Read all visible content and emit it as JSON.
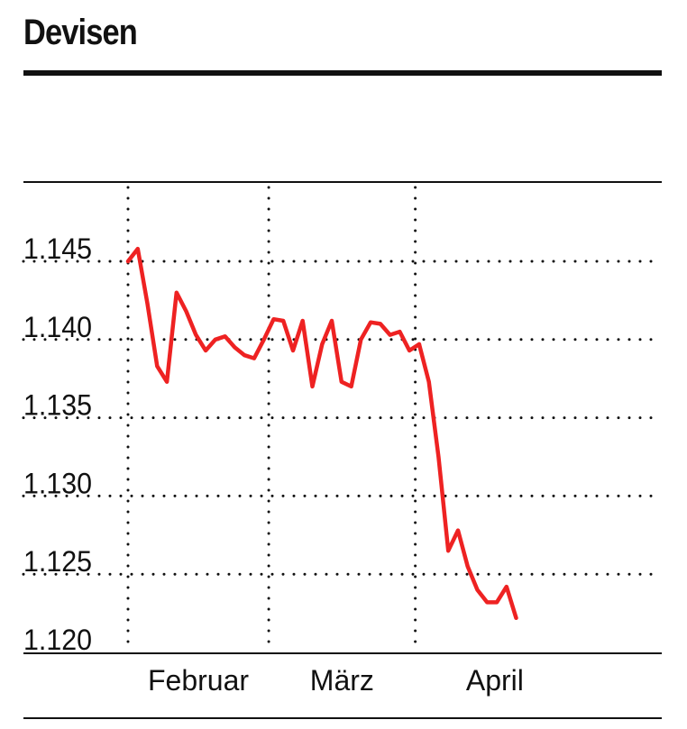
{
  "chart_data": {
    "type": "line",
    "title": "Devisen",
    "xlabel": "",
    "ylabel": "",
    "y_ticks": [
      "1.145",
      "1.140",
      "1.135",
      "1.130",
      "1.125",
      "1.120"
    ],
    "y_tick_values": [
      1.145,
      1.14,
      1.135,
      1.13,
      1.125,
      1.12
    ],
    "ylim": [
      1.12,
      1.145
    ],
    "x_tick_labels": [
      "Februar",
      "März",
      "April"
    ],
    "x_index_range": [
      0,
      55
    ],
    "x_gridlines_at_index": [
      0,
      14.5,
      29.6
    ],
    "x_label_at_index": [
      7.25,
      22.05,
      37.8
    ],
    "grid": "dotted",
    "colors": {
      "line": "#ee2222",
      "text": "#111111",
      "rule": "#111111"
    },
    "series": [
      {
        "name": "",
        "x": [
          0,
          1,
          2,
          3,
          4,
          5,
          6,
          7,
          8,
          9,
          10,
          11,
          12,
          13,
          14,
          15,
          16,
          17,
          18,
          19,
          20,
          21,
          22,
          23,
          24,
          25,
          26,
          27,
          28,
          29,
          30
        ],
        "y": [
          1.145,
          1.1458,
          1.1423,
          1.1383,
          1.1373,
          1.143,
          1.1418,
          1.1403,
          1.1393,
          1.14,
          1.1402,
          1.1395,
          1.139,
          1.1388,
          1.14,
          1.1413,
          1.1412,
          1.1393,
          1.1412,
          1.137,
          1.1397,
          1.1412,
          1.1373,
          1.137,
          1.14,
          1.1411,
          1.141,
          1.1403,
          1.1405,
          1.1393,
          1.1397
        ]
      },
      {
        "name": "",
        "x": [
          30,
          31,
          32,
          33,
          34,
          35,
          36,
          37,
          38,
          39,
          40
        ],
        "y": [
          1.1397,
          1.1373,
          1.1325,
          1.1265,
          1.1278,
          1.1255,
          1.124,
          1.1232,
          1.1232,
          1.1242,
          1.1222
        ]
      }
    ]
  }
}
